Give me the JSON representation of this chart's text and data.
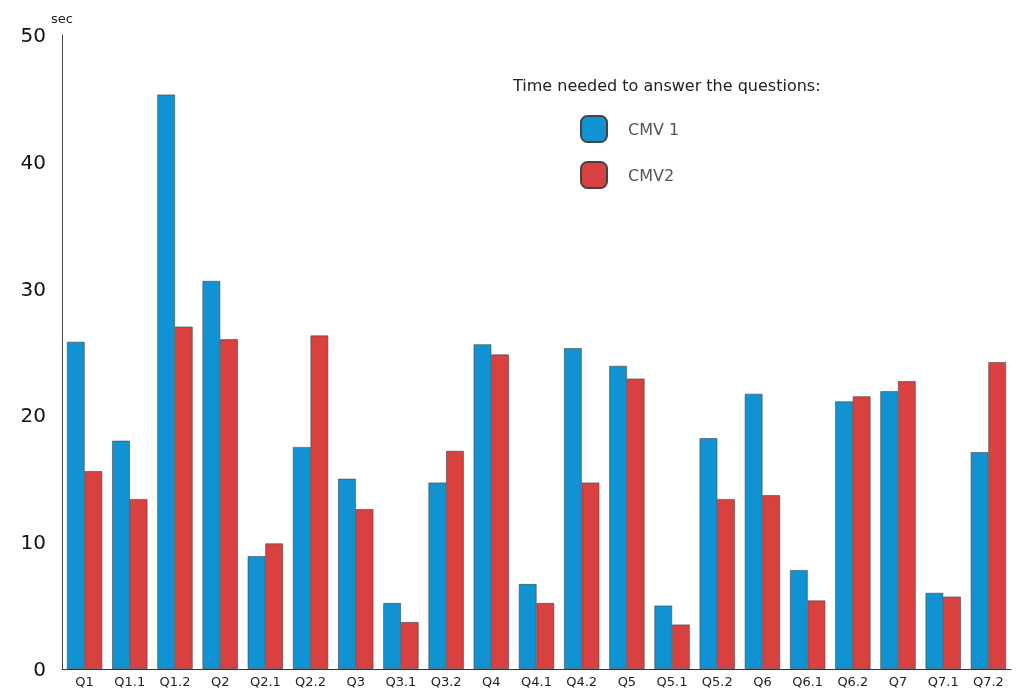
{
  "chart_data": {
    "type": "bar",
    "categories": [
      "Q1",
      "Q1.1",
      "Q1.2",
      "Q2",
      "Q2.1",
      "Q2.2",
      "Q3",
      "Q3.1",
      "Q3.2",
      "Q4",
      "Q4.1",
      "Q4.2",
      "Q5",
      "Q5.1",
      "Q5.2",
      "Q6",
      "Q6.1",
      "Q6.2",
      "Q7",
      "Q7.1",
      "Q7.2"
    ],
    "series": [
      {
        "name": "CMV 1",
        "color": "#1192d3",
        "values": [
          25.8,
          18.0,
          45.3,
          30.6,
          8.9,
          17.5,
          15.0,
          5.2,
          14.7,
          25.6,
          6.7,
          25.3,
          23.9,
          5.0,
          18.2,
          21.7,
          7.8,
          21.1,
          21.9,
          6.0,
          17.1
        ]
      },
      {
        "name": "CMV2",
        "color": "#d94040",
        "values": [
          15.6,
          13.4,
          27.0,
          26.0,
          9.9,
          26.3,
          12.6,
          3.7,
          17.2,
          24.8,
          5.2,
          14.7,
          22.9,
          3.5,
          13.4,
          13.7,
          5.4,
          21.5,
          22.7,
          5.7,
          24.2
        ]
      }
    ],
    "ylabel": "sec",
    "legend_title": "Time needed to answer the questions:",
    "ylim": [
      0,
      50
    ],
    "yticks": [
      0,
      10,
      20,
      30,
      40,
      50
    ],
    "grid": false,
    "legend": "top right"
  }
}
